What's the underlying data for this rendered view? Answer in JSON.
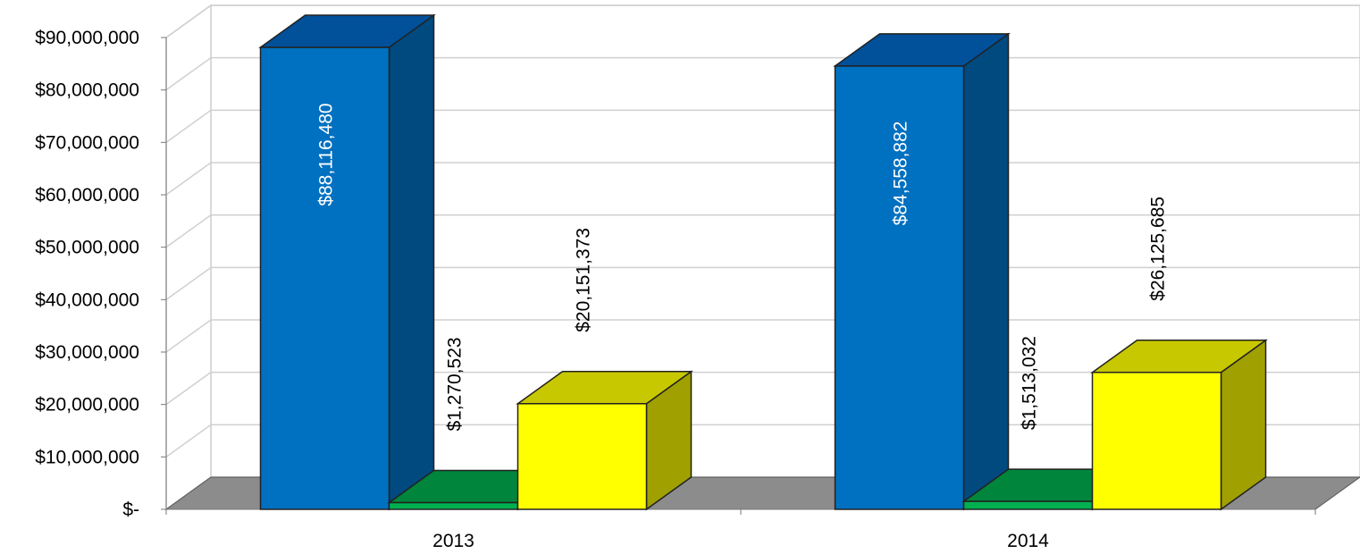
{
  "chart_data": {
    "type": "bar",
    "title": "",
    "xlabel": "",
    "ylabel": "",
    "categories": [
      "2013",
      "2014"
    ],
    "series": [
      {
        "values": [
          88116480,
          84558882
        ],
        "color": "#0070C0",
        "top_color": "#00509A",
        "side_color": "#004A80"
      },
      {
        "values": [
          1270523,
          1513032
        ],
        "color": "#00B050",
        "top_color": "#00853C",
        "side_color": "#006E32"
      },
      {
        "values": [
          20151373,
          26125685
        ],
        "color": "#FFFF00",
        "top_color": "#C8C800",
        "side_color": "#A0A000"
      }
    ],
    "data_labels": [
      [
        "$88,116,480",
        "$84,558,882"
      ],
      [
        "$1,270,523",
        "$1,513,032"
      ],
      [
        "$20,151,373",
        "$26,125,685"
      ]
    ],
    "data_label_colors": [
      "#FFFFFF",
      "#000000",
      "#000000"
    ],
    "ylim": [
      0,
      90000000
    ],
    "yticks": [
      0,
      10000000,
      20000000,
      30000000,
      40000000,
      50000000,
      60000000,
      70000000,
      80000000,
      90000000
    ],
    "ytick_labels": [
      "$-",
      "$10,000,000",
      "$20,000,000",
      "$30,000,000",
      "$40,000,000",
      "$50,000,000",
      "$60,000,000",
      "$70,000,000",
      "$80,000,000",
      "$90,000,000"
    ],
    "grid": true,
    "floor_color": "#8C8C8C",
    "legend": "none"
  }
}
